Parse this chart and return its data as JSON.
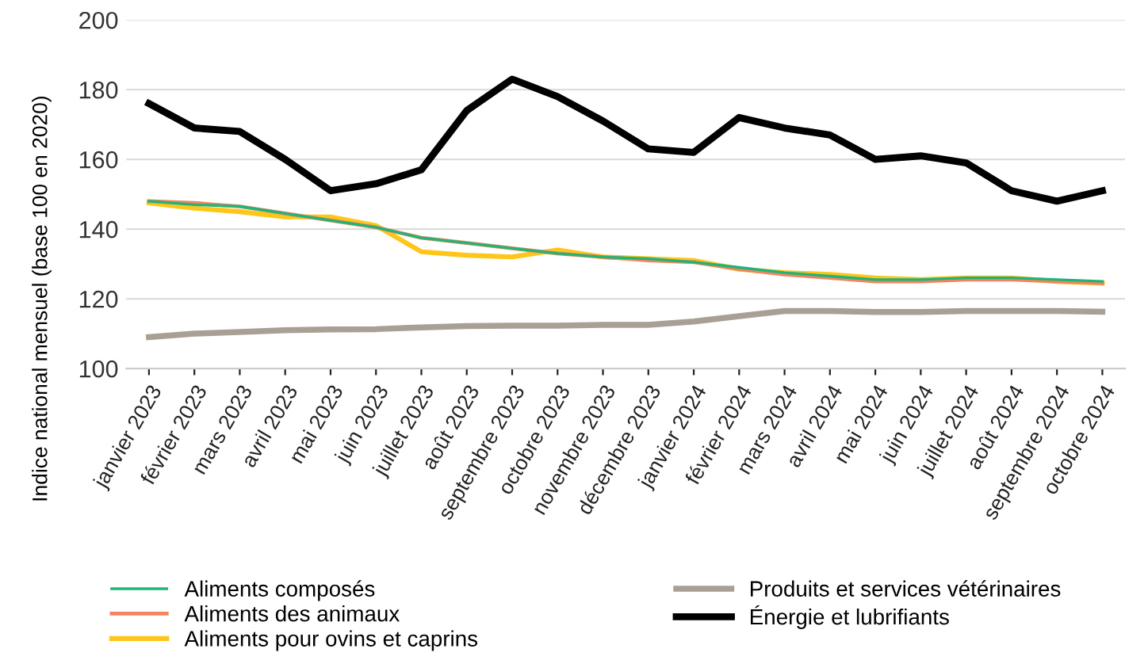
{
  "chart_data": {
    "type": "line",
    "ylabel": "Indice national mensuel (base 100 en 2020)",
    "categories": [
      "janvier 2023",
      "février 2023",
      "mars 2023",
      "avril 2023",
      "mai 2023",
      "juin 2023",
      "juillet 2023",
      "août 2023",
      "septembre 2023",
      "octobre 2023",
      "novembre 2023",
      "décembre 2023",
      "janvier 2024",
      "février 2024",
      "mars 2024",
      "avril 2024",
      "mai 2024",
      "juin 2024",
      "juillet 2024",
      "août 2024",
      "septembre 2024",
      "octobre 2024"
    ],
    "series": [
      {
        "name": "Aliments composés",
        "color": "#1fb478",
        "values": [
          148,
          147,
          146.5,
          144.5,
          142.5,
          140.5,
          137.5,
          136,
          134.5,
          133,
          132,
          131.5,
          130.5,
          129,
          127.5,
          126.5,
          125.5,
          125.5,
          126,
          126,
          125.5,
          125
        ]
      },
      {
        "name": "Aliments des animaux",
        "color": "#f4845f",
        "values": [
          148,
          147.5,
          146.5,
          144.5,
          142.5,
          140.5,
          137.5,
          136,
          134.5,
          133,
          132,
          131,
          130.5,
          128.5,
          127,
          126,
          125,
          125,
          125.5,
          125.5,
          125,
          124.5
        ]
      },
      {
        "name": "Aliments pour ovins et caprins",
        "color": "#ffc61a",
        "values": [
          147.5,
          146,
          145,
          143.5,
          143.5,
          141,
          133.5,
          132.5,
          132,
          134,
          132,
          131.5,
          131,
          128.5,
          127.5,
          127,
          126,
          125.5,
          126,
          126,
          125,
          124.5
        ]
      },
      {
        "name": "Produits et services vétérinaires",
        "color": "#a89f95",
        "values": [
          109,
          110,
          110.5,
          111,
          111.2,
          111.3,
          111.8,
          112.2,
          112.3,
          112.3,
          112.5,
          112.5,
          113.5,
          115,
          116.5,
          116.5,
          116.2,
          116.2,
          116.5,
          116.5,
          116.5,
          116.3
        ]
      },
      {
        "name": "Énergie et lubrifiants",
        "color": "#000000",
        "values": [
          176,
          169,
          168,
          160,
          151,
          153,
          157,
          174,
          183,
          178,
          171,
          163,
          162,
          172,
          169,
          167,
          160,
          161,
          159,
          151,
          148,
          151
        ]
      }
    ],
    "ylim": [
      100,
      200
    ],
    "yticks": [
      100,
      120,
      140,
      160,
      180,
      200
    ],
    "grid": "y",
    "legend": "bottom",
    "marker": "none",
    "line_style": "solid"
  }
}
